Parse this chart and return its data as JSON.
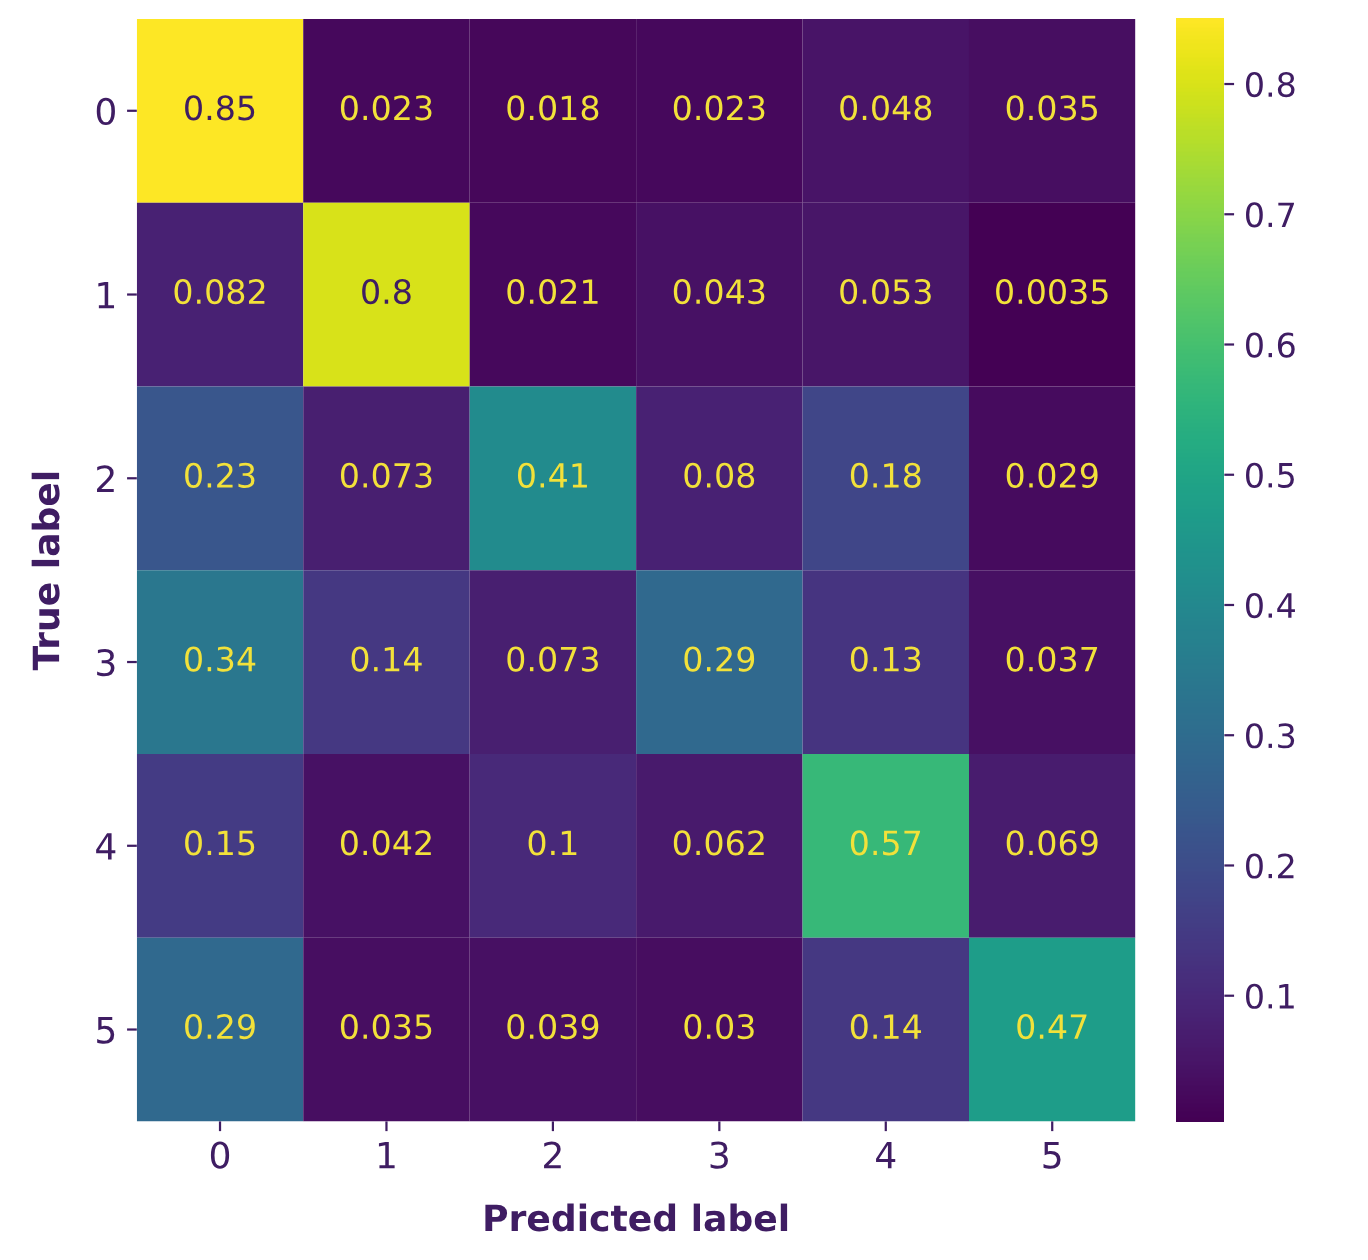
{
  "chart_data": {
    "type": "heatmap",
    "xlabel": "Predicted label",
    "ylabel": "True label",
    "categories": [
      "0",
      "1",
      "2",
      "3",
      "4",
      "5"
    ],
    "y_categories": [
      "0",
      "1",
      "2",
      "3",
      "4",
      "5"
    ],
    "cells": [
      [
        0.85,
        0.023,
        0.018,
        0.023,
        0.048,
        0.035
      ],
      [
        0.082,
        0.8,
        0.021,
        0.043,
        0.053,
        0.0035
      ],
      [
        0.23,
        0.073,
        0.41,
        0.08,
        0.18,
        0.029
      ],
      [
        0.34,
        0.14,
        0.073,
        0.29,
        0.13,
        0.037
      ],
      [
        0.15,
        0.042,
        0.1,
        0.062,
        0.57,
        0.069
      ],
      [
        0.29,
        0.035,
        0.039,
        0.03,
        0.14,
        0.47
      ]
    ],
    "data_labels": true,
    "clim": [
      0.0035,
      0.85
    ],
    "cticks": [
      0.1,
      0.2,
      0.3,
      0.4,
      0.5,
      0.6,
      0.7,
      0.8
    ]
  }
}
